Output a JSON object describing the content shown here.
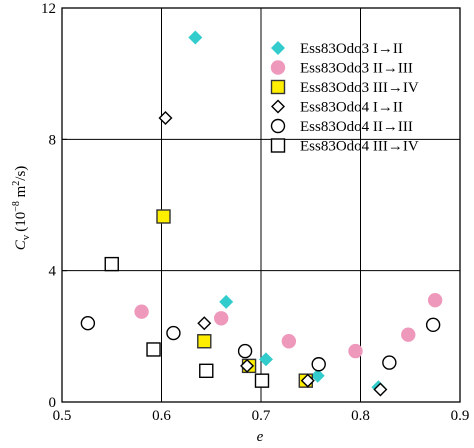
{
  "chart_data": {
    "type": "scatter",
    "xlabel": "e",
    "ylabel": "C_v (10^-8 m^2/s)",
    "ylabel_parts": {
      "symbol": "C",
      "sub": "v",
      "open": "(10",
      "exp1": "−8",
      "unit": " m",
      "exp2": "2",
      "close": "/s)"
    },
    "xlim": [
      0.5,
      0.9
    ],
    "ylim": [
      0,
      12
    ],
    "x_ticks": [
      0.5,
      0.6,
      0.7,
      0.8,
      0.9
    ],
    "x_tick_labels": [
      "0.5",
      "0.6",
      "0.7",
      "0.8",
      "0.9"
    ],
    "y_ticks": [
      0,
      4,
      8,
      12
    ],
    "y_tick_labels": [
      "0",
      "4",
      "8",
      "12"
    ],
    "grid": true,
    "legend_position": "top-right",
    "series": [
      {
        "name": "Ess83Odo3 I→II",
        "marker": "diamond",
        "fill": "#33cccc",
        "stroke": "#33cccc",
        "points": [
          [
            0.634,
            11.1
          ],
          [
            0.665,
            3.05
          ],
          [
            0.705,
            1.3
          ],
          [
            0.757,
            0.8
          ],
          [
            0.818,
            0.45
          ]
        ]
      },
      {
        "name": "Ess83Odo3 II→III",
        "marker": "circle",
        "fill": "#ee99bb",
        "stroke": "#ee99bb",
        "points": [
          [
            0.58,
            2.75
          ],
          [
            0.66,
            2.55
          ],
          [
            0.728,
            1.85
          ],
          [
            0.795,
            1.55
          ],
          [
            0.848,
            2.05
          ],
          [
            0.875,
            3.1
          ]
        ]
      },
      {
        "name": "Ess83Odo3 III→IV",
        "marker": "square",
        "fill": "#ffee00",
        "stroke": "#333333",
        "points": [
          [
            0.602,
            5.65
          ],
          [
            0.643,
            1.85
          ],
          [
            0.688,
            1.1
          ],
          [
            0.745,
            0.65
          ]
        ]
      },
      {
        "name": "Ess83Odo4 I→II",
        "marker": "diamond",
        "fill": "#ffffff",
        "stroke": "#000000",
        "points": [
          [
            0.604,
            8.65
          ],
          [
            0.643,
            2.4
          ],
          [
            0.686,
            1.1
          ],
          [
            0.747,
            0.65
          ],
          [
            0.82,
            0.38
          ]
        ]
      },
      {
        "name": "Ess83Odo4 II→III",
        "marker": "circle",
        "fill": "#ffffff",
        "stroke": "#000000",
        "points": [
          [
            0.526,
            2.4
          ],
          [
            0.612,
            2.1
          ],
          [
            0.684,
            1.55
          ],
          [
            0.758,
            1.15
          ],
          [
            0.829,
            1.2
          ],
          [
            0.873,
            2.35
          ]
        ]
      },
      {
        "name": "Ess83Odo4 III→IV",
        "marker": "square",
        "fill": "#ffffff",
        "stroke": "#000000",
        "points": [
          [
            0.55,
            4.2
          ],
          [
            0.592,
            1.6
          ],
          [
            0.645,
            0.95
          ],
          [
            0.701,
            0.65
          ]
        ]
      }
    ]
  }
}
